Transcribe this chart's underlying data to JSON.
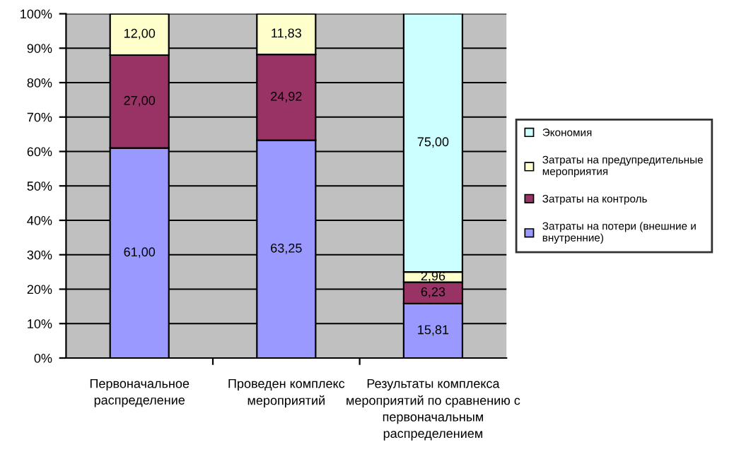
{
  "chart_data": {
    "type": "bar",
    "stacked": true,
    "categories": [
      "Первоначальное распределение",
      "Проведен комплекс мероприятий",
      "Результаты комплекса мероприятий по сравнению с первоначальным распределением"
    ],
    "series": [
      {
        "name": "Затраты на потери (внешние и внутренние)",
        "color": "#9999ff",
        "values": [
          61.0,
          63.25,
          15.81
        ],
        "value_labels": [
          "61,00",
          "63,25",
          "15,81"
        ]
      },
      {
        "name": "Затраты на контроль",
        "color": "#993366",
        "values": [
          27.0,
          24.92,
          6.23
        ],
        "value_labels": [
          "27,00",
          "24,92",
          "6,23"
        ]
      },
      {
        "name": "Затраты на предупредительные мероприятия",
        "color": "#ffffcc",
        "values": [
          12.0,
          11.83,
          2.96
        ],
        "value_labels": [
          "12,00",
          "11,83",
          "2,96"
        ]
      },
      {
        "name": "Экономия",
        "color": "#ccffff",
        "values": [
          null,
          null,
          75.0
        ],
        "value_labels": [
          null,
          null,
          "75,00"
        ]
      }
    ],
    "ylim": [
      0,
      100
    ],
    "yticks": [
      {
        "value": 0,
        "label": "0%"
      },
      {
        "value": 10,
        "label": "10%"
      },
      {
        "value": 20,
        "label": "20%"
      },
      {
        "value": 30,
        "label": "30%"
      },
      {
        "value": 40,
        "label": "40%"
      },
      {
        "value": 50,
        "label": "50%"
      },
      {
        "value": 60,
        "label": "60%"
      },
      {
        "value": 70,
        "label": "70%"
      },
      {
        "value": 80,
        "label": "80%"
      },
      {
        "value": 90,
        "label": "90%"
      },
      {
        "value": 100,
        "label": "100%"
      }
    ],
    "grid": "y",
    "legend": "right"
  }
}
